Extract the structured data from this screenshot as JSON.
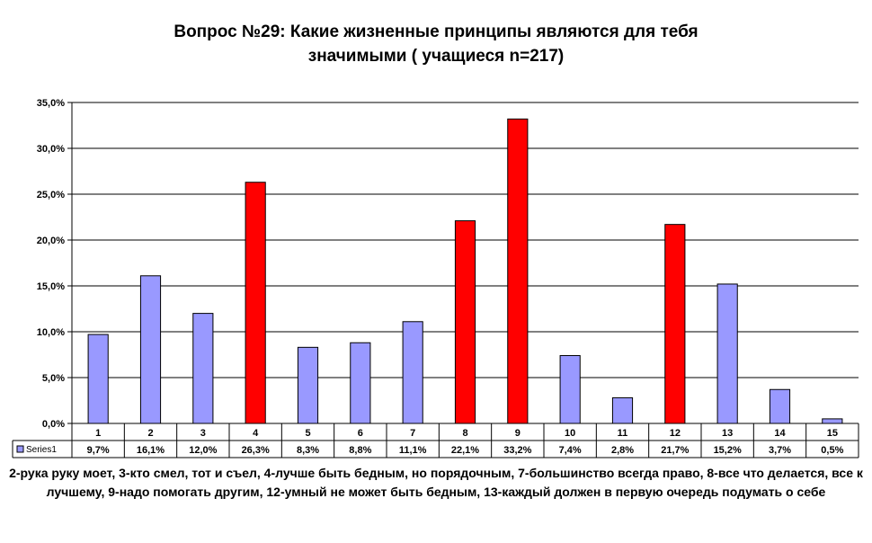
{
  "chart_data": {
    "type": "bar",
    "title_line1": "Вопрос №29: Какие жизненные принципы являются для тебя",
    "title_line2": "значимыми ( учащиеся n=217)",
    "categories": [
      "1",
      "2",
      "3",
      "4",
      "5",
      "6",
      "7",
      "8",
      "9",
      "10",
      "11",
      "12",
      "13",
      "14",
      "15"
    ],
    "series": [
      {
        "name": "Series1",
        "values": [
          9.7,
          16.1,
          12.0,
          26.3,
          8.3,
          8.8,
          11.1,
          22.1,
          33.2,
          7.4,
          2.8,
          21.7,
          15.2,
          3.7,
          0.5
        ],
        "value_labels": [
          "9,7%",
          "16,1%",
          "12,0%",
          "26,3%",
          "8,3%",
          "8,8%",
          "11,1%",
          "22,1%",
          "33,2%",
          "7,4%",
          "2,8%",
          "21,7%",
          "15,2%",
          "3,7%",
          "0,5%"
        ]
      }
    ],
    "highlighted_categories": [
      "4",
      "8",
      "9",
      "12"
    ],
    "ylim": [
      0,
      35
    ],
    "ytick_values": [
      0,
      5,
      10,
      15,
      20,
      25,
      30,
      35
    ],
    "ytick_labels": [
      "0,0%",
      "5,0%",
      "10,0%",
      "15,0%",
      "20,0%",
      "25,0%",
      "30,0%",
      "35,0%"
    ],
    "grid": true,
    "data_table": true,
    "colors": {
      "normal_bar": "#9999ff",
      "highlight_bar": "#ff0000",
      "outline": "#000000"
    }
  },
  "footnote": "2-рука руку моет, 3-кто смел, тот и съел, 4-лучше быть бедным, но порядочным, 7-большинство всегда право, 8-все что делается, все к лучшему, 9-надо помогать другим, 12-умный не может быть бедным, 13-каждый должен в первую очередь подумать о себе"
}
